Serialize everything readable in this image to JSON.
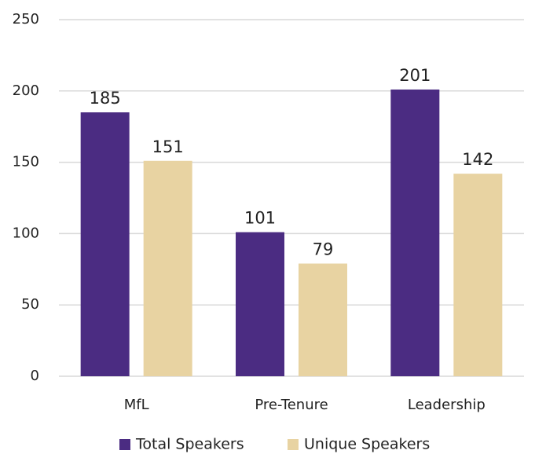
{
  "chart_data": {
    "type": "bar",
    "categories": [
      "MfL",
      "Pre-Tenure",
      "Leadership"
    ],
    "series": [
      {
        "name": "Total Speakers",
        "color": "#4b2c82",
        "values": [
          185,
          101,
          201
        ]
      },
      {
        "name": "Unique Speakers",
        "color": "#e8d3a2",
        "values": [
          151,
          79,
          142
        ]
      }
    ],
    "ylim": [
      0,
      250
    ],
    "yticks": [
      0,
      50,
      100,
      150,
      200,
      250
    ],
    "grid": true,
    "legend": "bottom"
  }
}
